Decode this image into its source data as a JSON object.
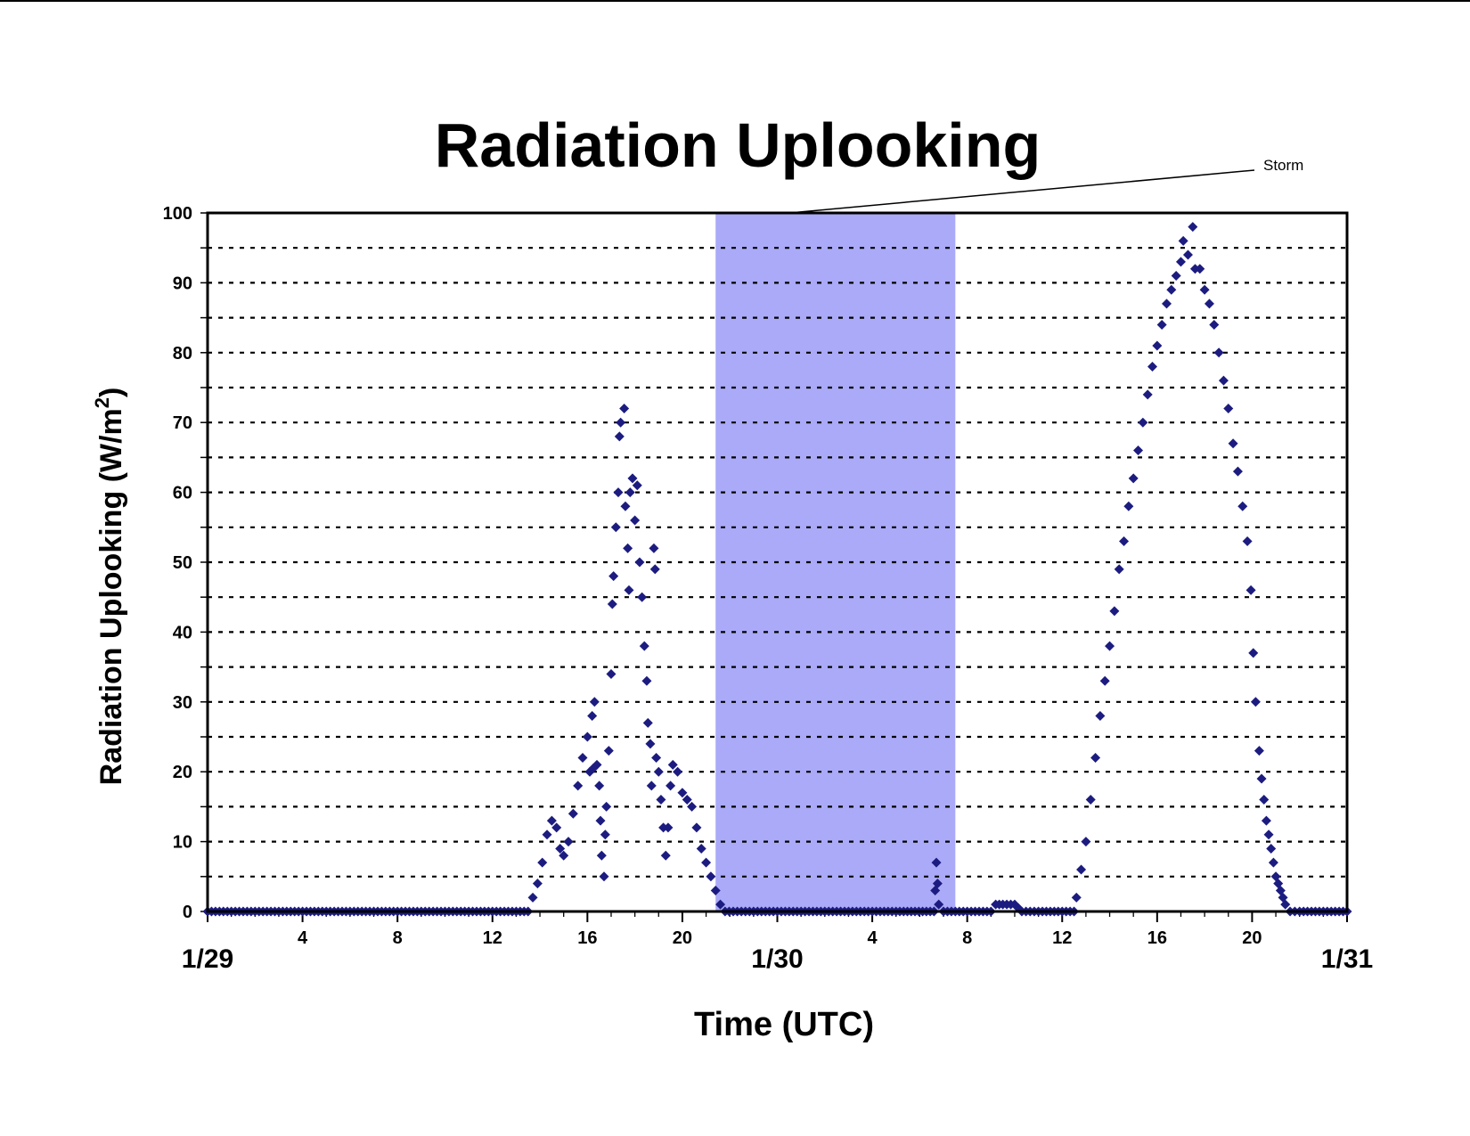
{
  "chart_data": {
    "type": "scatter",
    "title": "Radiation Uplooking",
    "xlabel": "Time (UTC)",
    "ylabel": {
      "main": "Radiation Uplooking (W/m",
      "sup": "2",
      "end": ")"
    },
    "xlim": [
      0,
      48
    ],
    "ylim": [
      0,
      100
    ],
    "grid": true,
    "marker": "diamond",
    "colors": {
      "points": "#1c1c80",
      "storm": "#aaaaf8",
      "grid": "#000000"
    },
    "y_ticks": [
      "0",
      "10",
      "20",
      "30",
      "40",
      "50",
      "60",
      "70",
      "80",
      "90",
      "100"
    ],
    "x_hour_ticks": [
      {
        "x": 4,
        "label": "4"
      },
      {
        "x": 8,
        "label": "8"
      },
      {
        "x": 12,
        "label": "12"
      },
      {
        "x": 16,
        "label": "16"
      },
      {
        "x": 20,
        "label": "20"
      },
      {
        "x": 28,
        "label": "4"
      },
      {
        "x": 32,
        "label": "8"
      },
      {
        "x": 36,
        "label": "12"
      },
      {
        "x": 40,
        "label": "16"
      },
      {
        "x": 44,
        "label": "20"
      }
    ],
    "x_date_ticks": [
      {
        "x": 0,
        "label": "1/29"
      },
      {
        "x": 24,
        "label": "1/30"
      },
      {
        "x": 48,
        "label": "1/31"
      }
    ],
    "annotations": [
      {
        "text": "Storm",
        "region": [
          21.4,
          31.5
        ],
        "pointer_x": 24.5
      }
    ],
    "series": [
      {
        "values": [
          [
            0,
            0
          ],
          [
            2,
            0
          ],
          [
            4,
            0
          ],
          [
            6,
            0
          ],
          [
            8,
            0
          ],
          [
            10,
            0
          ],
          [
            12,
            0
          ],
          [
            13.5,
            0
          ],
          [
            13.7,
            2
          ],
          [
            13.9,
            4
          ],
          [
            14.1,
            7
          ],
          [
            14.3,
            11
          ],
          [
            14.5,
            13
          ],
          [
            14.7,
            12
          ],
          [
            14.85,
            9
          ],
          [
            15.0,
            8
          ],
          [
            15.2,
            10
          ],
          [
            15.4,
            14
          ],
          [
            15.6,
            18
          ],
          [
            15.8,
            22
          ],
          [
            16.0,
            25
          ],
          [
            16.2,
            28
          ],
          [
            16.3,
            30
          ],
          [
            16.1,
            20
          ],
          [
            16.4,
            21
          ],
          [
            16.5,
            18
          ],
          [
            16.55,
            13
          ],
          [
            16.6,
            8
          ],
          [
            16.7,
            5
          ],
          [
            16.75,
            11
          ],
          [
            16.8,
            15
          ],
          [
            16.9,
            23
          ],
          [
            17.0,
            34
          ],
          [
            17.05,
            44
          ],
          [
            17.1,
            48
          ],
          [
            17.2,
            55
          ],
          [
            17.3,
            60
          ],
          [
            17.35,
            68
          ],
          [
            17.4,
            70
          ],
          [
            17.55,
            72
          ],
          [
            17.6,
            58
          ],
          [
            17.7,
            52
          ],
          [
            17.75,
            46
          ],
          [
            17.8,
            60
          ],
          [
            17.9,
            62
          ],
          [
            18.0,
            56
          ],
          [
            18.1,
            61
          ],
          [
            18.2,
            50
          ],
          [
            18.3,
            45
          ],
          [
            18.4,
            38
          ],
          [
            18.5,
            33
          ],
          [
            18.55,
            27
          ],
          [
            18.65,
            24
          ],
          [
            18.7,
            18
          ],
          [
            18.8,
            52
          ],
          [
            18.85,
            49
          ],
          [
            18.9,
            22
          ],
          [
            19.0,
            20
          ],
          [
            19.1,
            16
          ],
          [
            19.2,
            12
          ],
          [
            19.3,
            8
          ],
          [
            19.4,
            12
          ],
          [
            19.5,
            18
          ],
          [
            19.6,
            21
          ],
          [
            19.8,
            20
          ],
          [
            20.0,
            17
          ],
          [
            20.2,
            16
          ],
          [
            20.4,
            15
          ],
          [
            20.6,
            12
          ],
          [
            20.8,
            9
          ],
          [
            21.0,
            7
          ],
          [
            21.2,
            5
          ],
          [
            21.4,
            3
          ],
          [
            21.6,
            1
          ],
          [
            21.8,
            0
          ],
          [
            23,
            0
          ],
          [
            25,
            0
          ],
          [
            27,
            0
          ],
          [
            29,
            0
          ],
          [
            30.6,
            0
          ],
          [
            30.65,
            3
          ],
          [
            30.7,
            7
          ],
          [
            30.75,
            4
          ],
          [
            30.8,
            1
          ],
          [
            31,
            0
          ],
          [
            33,
            0
          ],
          [
            33.2,
            1
          ],
          [
            33.5,
            1
          ],
          [
            34.0,
            1
          ],
          [
            34.3,
            0
          ],
          [
            35,
            0
          ],
          [
            36.5,
            0
          ],
          [
            36.6,
            2
          ],
          [
            36.8,
            6
          ],
          [
            37.0,
            10
          ],
          [
            37.2,
            16
          ],
          [
            37.4,
            22
          ],
          [
            37.6,
            28
          ],
          [
            37.8,
            33
          ],
          [
            38.0,
            38
          ],
          [
            38.2,
            43
          ],
          [
            38.4,
            49
          ],
          [
            38.6,
            53
          ],
          [
            38.8,
            58
          ],
          [
            39.0,
            62
          ],
          [
            39.2,
            66
          ],
          [
            39.4,
            70
          ],
          [
            39.6,
            74
          ],
          [
            39.8,
            78
          ],
          [
            40.0,
            81
          ],
          [
            40.2,
            84
          ],
          [
            40.4,
            87
          ],
          [
            40.6,
            89
          ],
          [
            40.8,
            91
          ],
          [
            41.0,
            93
          ],
          [
            41.1,
            96
          ],
          [
            41.3,
            94
          ],
          [
            41.5,
            98
          ],
          [
            41.6,
            92
          ],
          [
            41.8,
            92
          ],
          [
            42.0,
            89
          ],
          [
            42.2,
            87
          ],
          [
            42.4,
            84
          ],
          [
            42.6,
            80
          ],
          [
            42.8,
            76
          ],
          [
            43.0,
            72
          ],
          [
            43.2,
            67
          ],
          [
            43.4,
            63
          ],
          [
            43.6,
            58
          ],
          [
            43.8,
            53
          ],
          [
            43.95,
            46
          ],
          [
            44.05,
            37
          ],
          [
            44.15,
            30
          ],
          [
            44.3,
            23
          ],
          [
            44.4,
            19
          ],
          [
            44.5,
            16
          ],
          [
            44.6,
            13
          ],
          [
            44.7,
            11
          ],
          [
            44.8,
            9
          ],
          [
            44.9,
            7
          ],
          [
            45.0,
            5
          ],
          [
            45.1,
            4
          ],
          [
            45.2,
            3
          ],
          [
            45.3,
            2
          ],
          [
            45.4,
            1
          ],
          [
            45.6,
            0
          ],
          [
            46,
            0
          ],
          [
            47,
            0
          ],
          [
            48,
            0
          ]
        ]
      }
    ]
  }
}
